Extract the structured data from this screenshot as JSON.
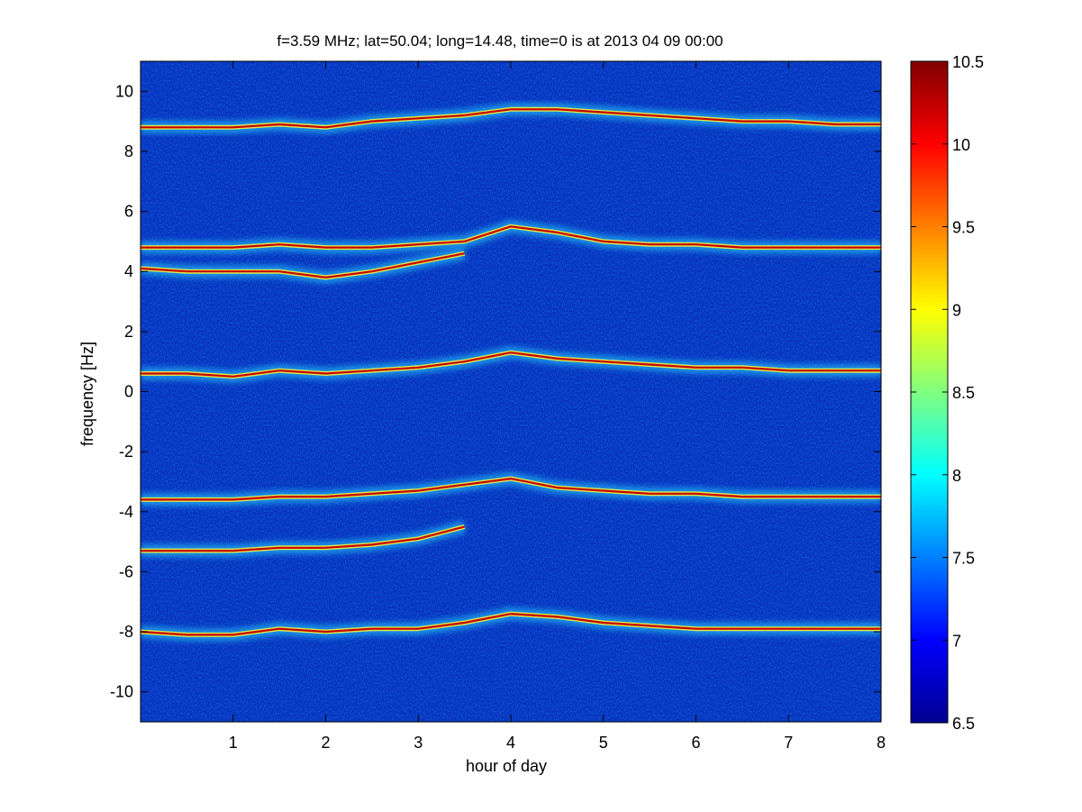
{
  "chart_data": {
    "type": "heatmap",
    "title": "f=3.59 MHz;  lat=50.04; long=14.48, time=0 is at 2013 04 09 00:00",
    "xlabel": "hour of day",
    "ylabel": "frequency [Hz]",
    "xlim": [
      0,
      8
    ],
    "ylim": [
      -11,
      11
    ],
    "xticks": [
      1,
      2,
      3,
      4,
      5,
      6,
      7,
      8
    ],
    "yticks": [
      -10,
      -8,
      -6,
      -4,
      -2,
      0,
      2,
      4,
      6,
      8,
      10
    ],
    "colorbar": {
      "range": [
        6.5,
        10.5
      ],
      "ticks": [
        6.5,
        7,
        7.5,
        8,
        8.5,
        9,
        9.5,
        10,
        10.5
      ],
      "colormap": "jet"
    },
    "traces": [
      {
        "points": [
          [
            0,
            8.8
          ],
          [
            0.5,
            8.8
          ],
          [
            1,
            8.8
          ],
          [
            1.5,
            8.9
          ],
          [
            2,
            8.8
          ],
          [
            2.5,
            9.0
          ],
          [
            3,
            9.1
          ],
          [
            3.5,
            9.2
          ],
          [
            4,
            9.4
          ],
          [
            4.5,
            9.4
          ],
          [
            5,
            9.3
          ],
          [
            5.5,
            9.2
          ],
          [
            6,
            9.1
          ],
          [
            6.5,
            9.0
          ],
          [
            7,
            9.0
          ],
          [
            7.5,
            8.9
          ],
          [
            8,
            8.9
          ]
        ]
      },
      {
        "points": [
          [
            0,
            4.8
          ],
          [
            0.5,
            4.8
          ],
          [
            1,
            4.8
          ],
          [
            1.5,
            4.9
          ],
          [
            2,
            4.8
          ],
          [
            2.5,
            4.8
          ],
          [
            3,
            4.9
          ],
          [
            3.5,
            5.0
          ],
          [
            4,
            5.5
          ],
          [
            4.5,
            5.3
          ],
          [
            5,
            5.0
          ],
          [
            5.5,
            4.9
          ],
          [
            6,
            4.9
          ],
          [
            6.5,
            4.8
          ],
          [
            7,
            4.8
          ],
          [
            7.5,
            4.8
          ],
          [
            8,
            4.8
          ]
        ]
      },
      {
        "points": [
          [
            0,
            4.1
          ],
          [
            0.5,
            4.0
          ],
          [
            1,
            4.0
          ],
          [
            1.5,
            4.0
          ],
          [
            2,
            3.8
          ],
          [
            2.5,
            4.0
          ],
          [
            3,
            4.3
          ],
          [
            3.5,
            4.6
          ]
        ]
      },
      {
        "points": [
          [
            0,
            0.6
          ],
          [
            0.5,
            0.6
          ],
          [
            1,
            0.5
          ],
          [
            1.5,
            0.7
          ],
          [
            2,
            0.6
          ],
          [
            2.5,
            0.7
          ],
          [
            3,
            0.8
          ],
          [
            3.5,
            1.0
          ],
          [
            4,
            1.3
          ],
          [
            4.5,
            1.1
          ],
          [
            5,
            1.0
          ],
          [
            5.5,
            0.9
          ],
          [
            6,
            0.8
          ],
          [
            6.5,
            0.8
          ],
          [
            7,
            0.7
          ],
          [
            7.5,
            0.7
          ],
          [
            8,
            0.7
          ]
        ]
      },
      {
        "points": [
          [
            0,
            -3.6
          ],
          [
            0.5,
            -3.6
          ],
          [
            1,
            -3.6
          ],
          [
            1.5,
            -3.5
          ],
          [
            2,
            -3.5
          ],
          [
            2.5,
            -3.4
          ],
          [
            3,
            -3.3
          ],
          [
            3.5,
            -3.1
          ],
          [
            4,
            -2.9
          ],
          [
            4.5,
            -3.2
          ],
          [
            5,
            -3.3
          ],
          [
            5.5,
            -3.4
          ],
          [
            6,
            -3.4
          ],
          [
            6.5,
            -3.5
          ],
          [
            7,
            -3.5
          ],
          [
            7.5,
            -3.5
          ],
          [
            8,
            -3.5
          ]
        ]
      },
      {
        "points": [
          [
            0,
            -5.3
          ],
          [
            0.5,
            -5.3
          ],
          [
            1,
            -5.3
          ],
          [
            1.5,
            -5.2
          ],
          [
            2,
            -5.2
          ],
          [
            2.5,
            -5.1
          ],
          [
            3,
            -4.9
          ],
          [
            3.5,
            -4.5
          ]
        ]
      },
      {
        "points": [
          [
            0,
            -8.0
          ],
          [
            0.5,
            -8.1
          ],
          [
            1,
            -8.1
          ],
          [
            1.5,
            -7.9
          ],
          [
            2,
            -8.0
          ],
          [
            2.5,
            -7.9
          ],
          [
            3,
            -7.9
          ],
          [
            3.5,
            -7.7
          ],
          [
            4,
            -7.4
          ],
          [
            4.5,
            -7.5
          ],
          [
            5,
            -7.7
          ],
          [
            5.5,
            -7.8
          ],
          [
            6,
            -7.9
          ],
          [
            6.5,
            -7.9
          ],
          [
            7,
            -7.9
          ],
          [
            7.5,
            -7.9
          ],
          [
            8,
            -7.9
          ]
        ]
      }
    ]
  }
}
